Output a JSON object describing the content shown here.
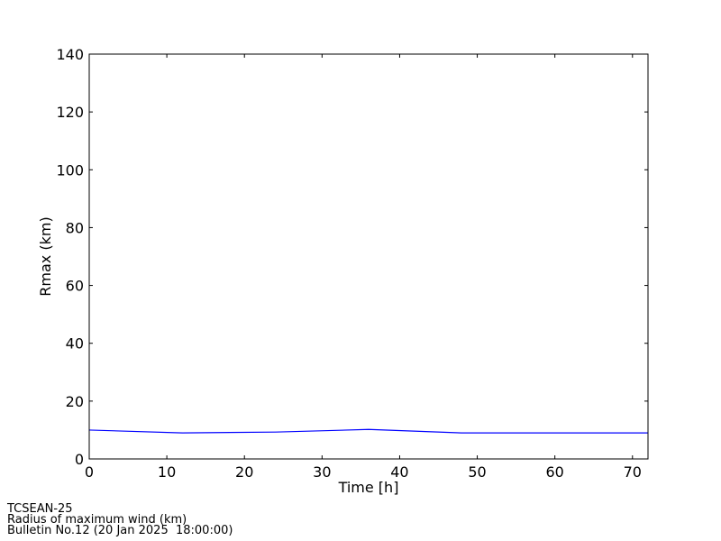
{
  "chart_data": {
    "type": "line",
    "title": "",
    "xlabel": "Time [h]",
    "ylabel": "Rmax (km)",
    "xlim": [
      0,
      72
    ],
    "ylim": [
      0,
      140
    ],
    "xticks": [
      0,
      10,
      20,
      30,
      40,
      50,
      60,
      70
    ],
    "yticks": [
      0,
      20,
      40,
      60,
      80,
      100,
      120,
      140
    ],
    "grid": false,
    "series": [
      {
        "color": "#0000ff",
        "x": [
          0,
          12,
          24,
          36,
          48,
          60,
          72
        ],
        "y": [
          10,
          9.0,
          9.3,
          10.2,
          9.0,
          9.0,
          9.0
        ]
      }
    ]
  },
  "footer": {
    "line1": "TCSEAN-25",
    "line2": "Radius of maximum wind (km)",
    "line3": "Bulletin No.12 (20 Jan 2025  18:00:00)"
  }
}
